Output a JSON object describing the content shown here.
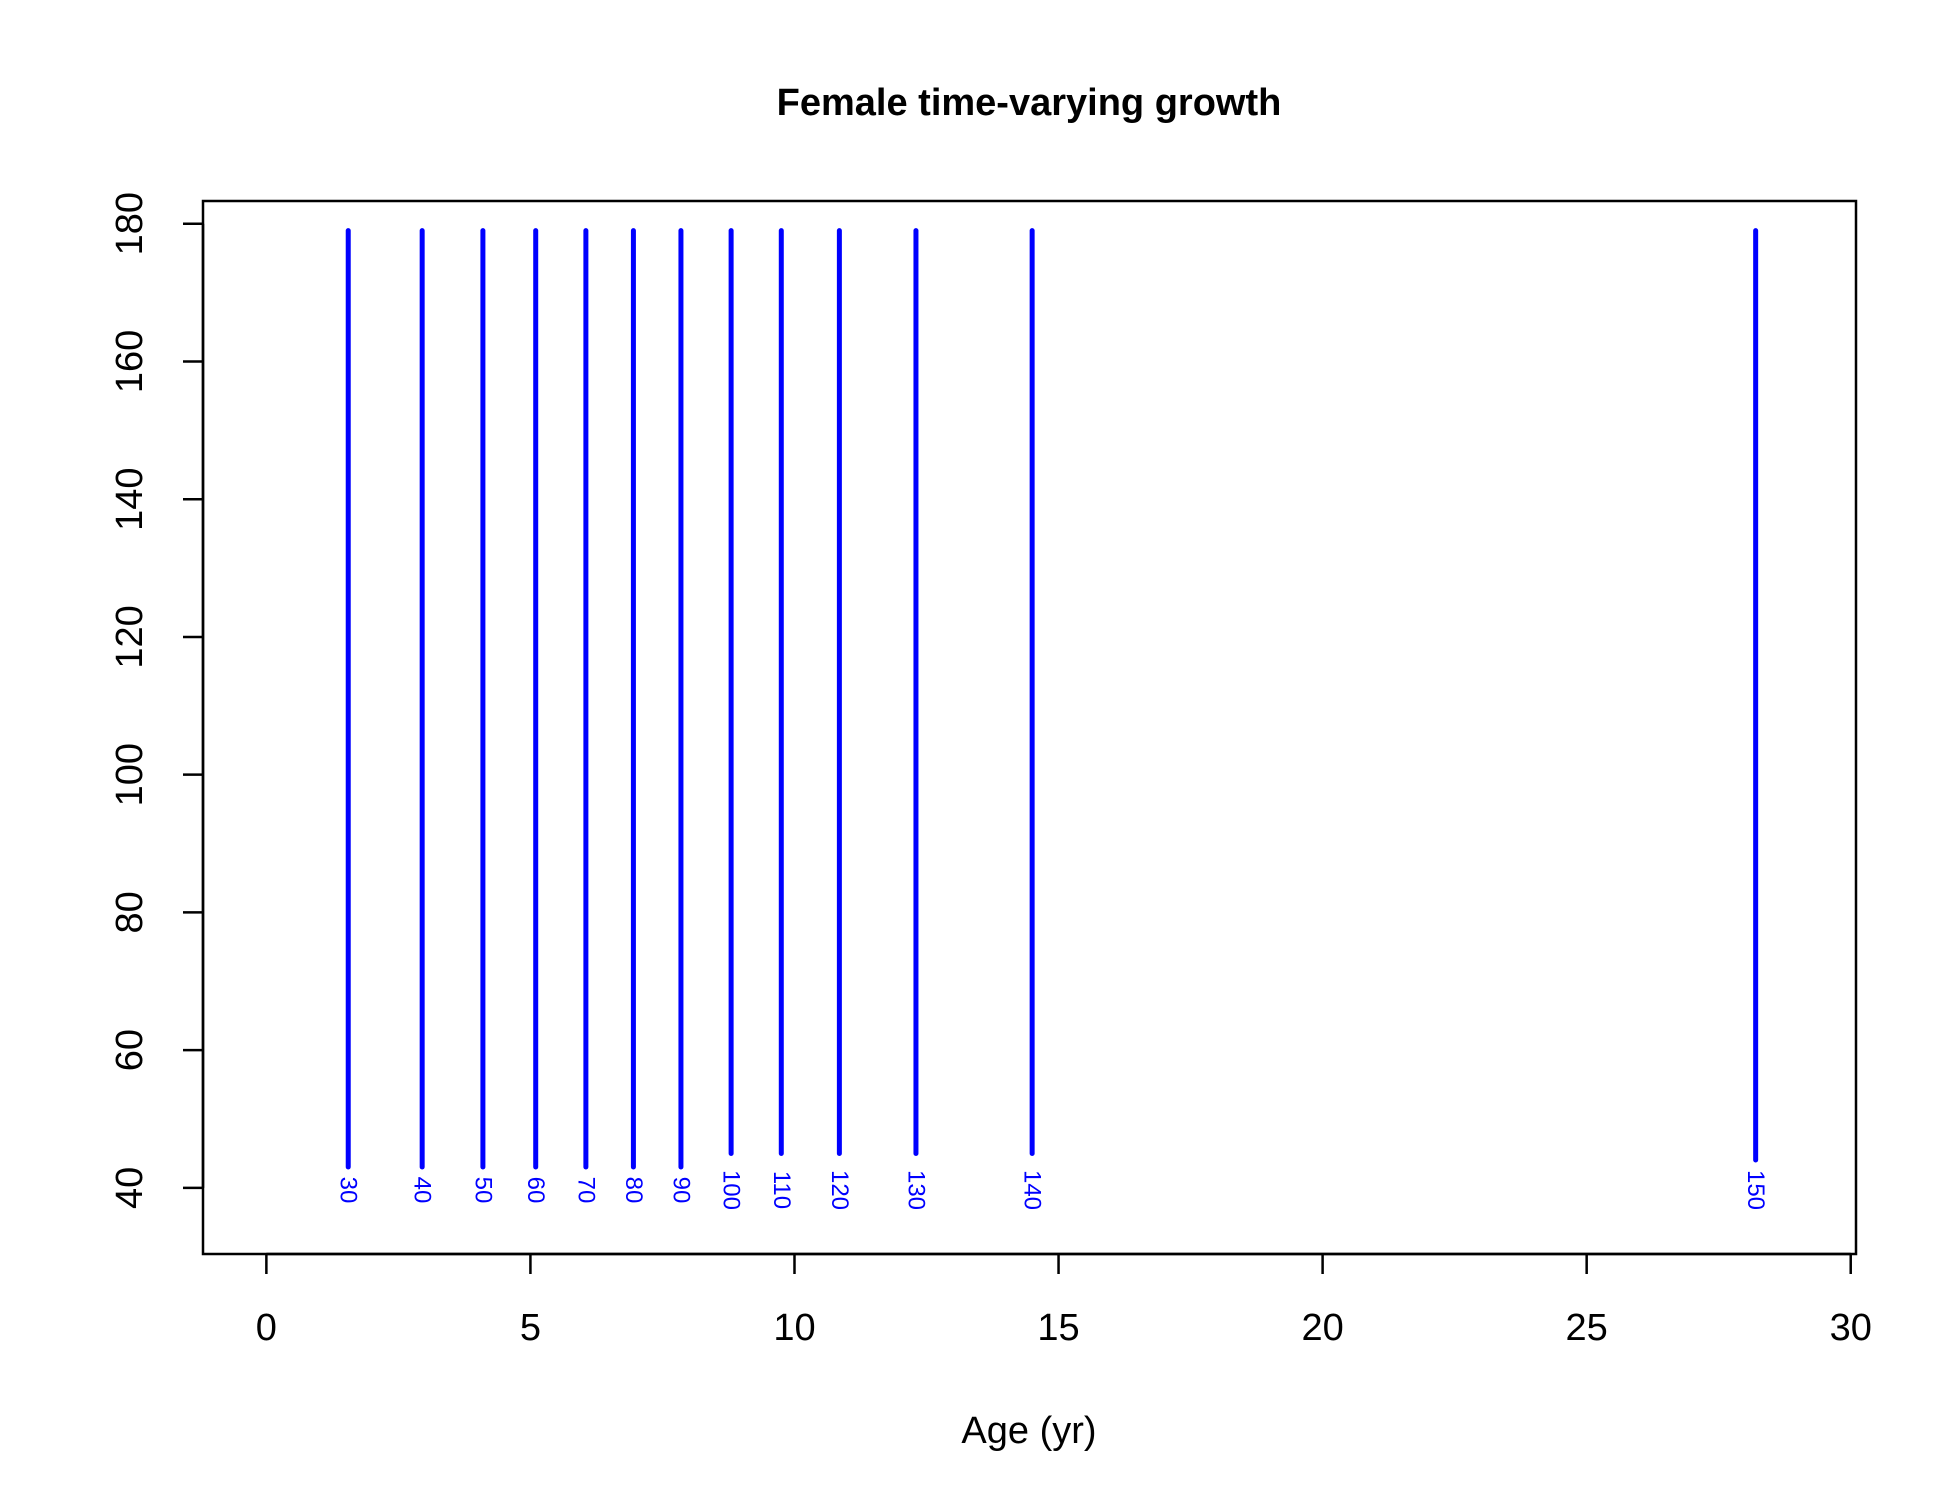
{
  "chart_data": {
    "type": "line",
    "title": "Female time-varying growth",
    "xlabel": "Age (yr)",
    "ylabel": "",
    "xlim": [
      -1.2,
      30.1
    ],
    "ylim": [
      30.4,
      183.3
    ],
    "xticks": [
      0,
      5,
      10,
      15,
      20,
      25,
      30
    ],
    "yticks": [
      40,
      60,
      80,
      100,
      120,
      140,
      160,
      180
    ],
    "line_color": "#0000ff",
    "grid": false,
    "contours": [
      {
        "label": "30",
        "x": 1.55,
        "y_start": 37,
        "y_end": 179
      },
      {
        "label": "40",
        "x": 2.95,
        "y_start": 37,
        "y_end": 179
      },
      {
        "label": "50",
        "x": 4.1,
        "y_start": 37,
        "y_end": 179
      },
      {
        "label": "60",
        "x": 5.1,
        "y_start": 43,
        "y_end": 179
      },
      {
        "label": "70",
        "x": 6.05,
        "y_start": 43,
        "y_end": 179
      },
      {
        "label": "80",
        "x": 6.95,
        "y_start": 43,
        "y_end": 179
      },
      {
        "label": "90",
        "x": 7.85,
        "y_start": 43,
        "y_end": 179
      },
      {
        "label": "100",
        "x": 8.8,
        "y_start": 45,
        "y_end": 179
      },
      {
        "label": "110",
        "x": 9.75,
        "y_start": 45,
        "y_end": 179
      },
      {
        "label": "120",
        "x": 10.85,
        "y_start": 45,
        "y_end": 179
      },
      {
        "label": "130",
        "x": 12.3,
        "y_start": 45,
        "y_end": 179
      },
      {
        "label": "140",
        "x": 14.5,
        "y_start": 45,
        "y_end": 179
      },
      {
        "label": "150",
        "x": 28.2,
        "y_start": 37,
        "y_end": 179
      }
    ]
  }
}
